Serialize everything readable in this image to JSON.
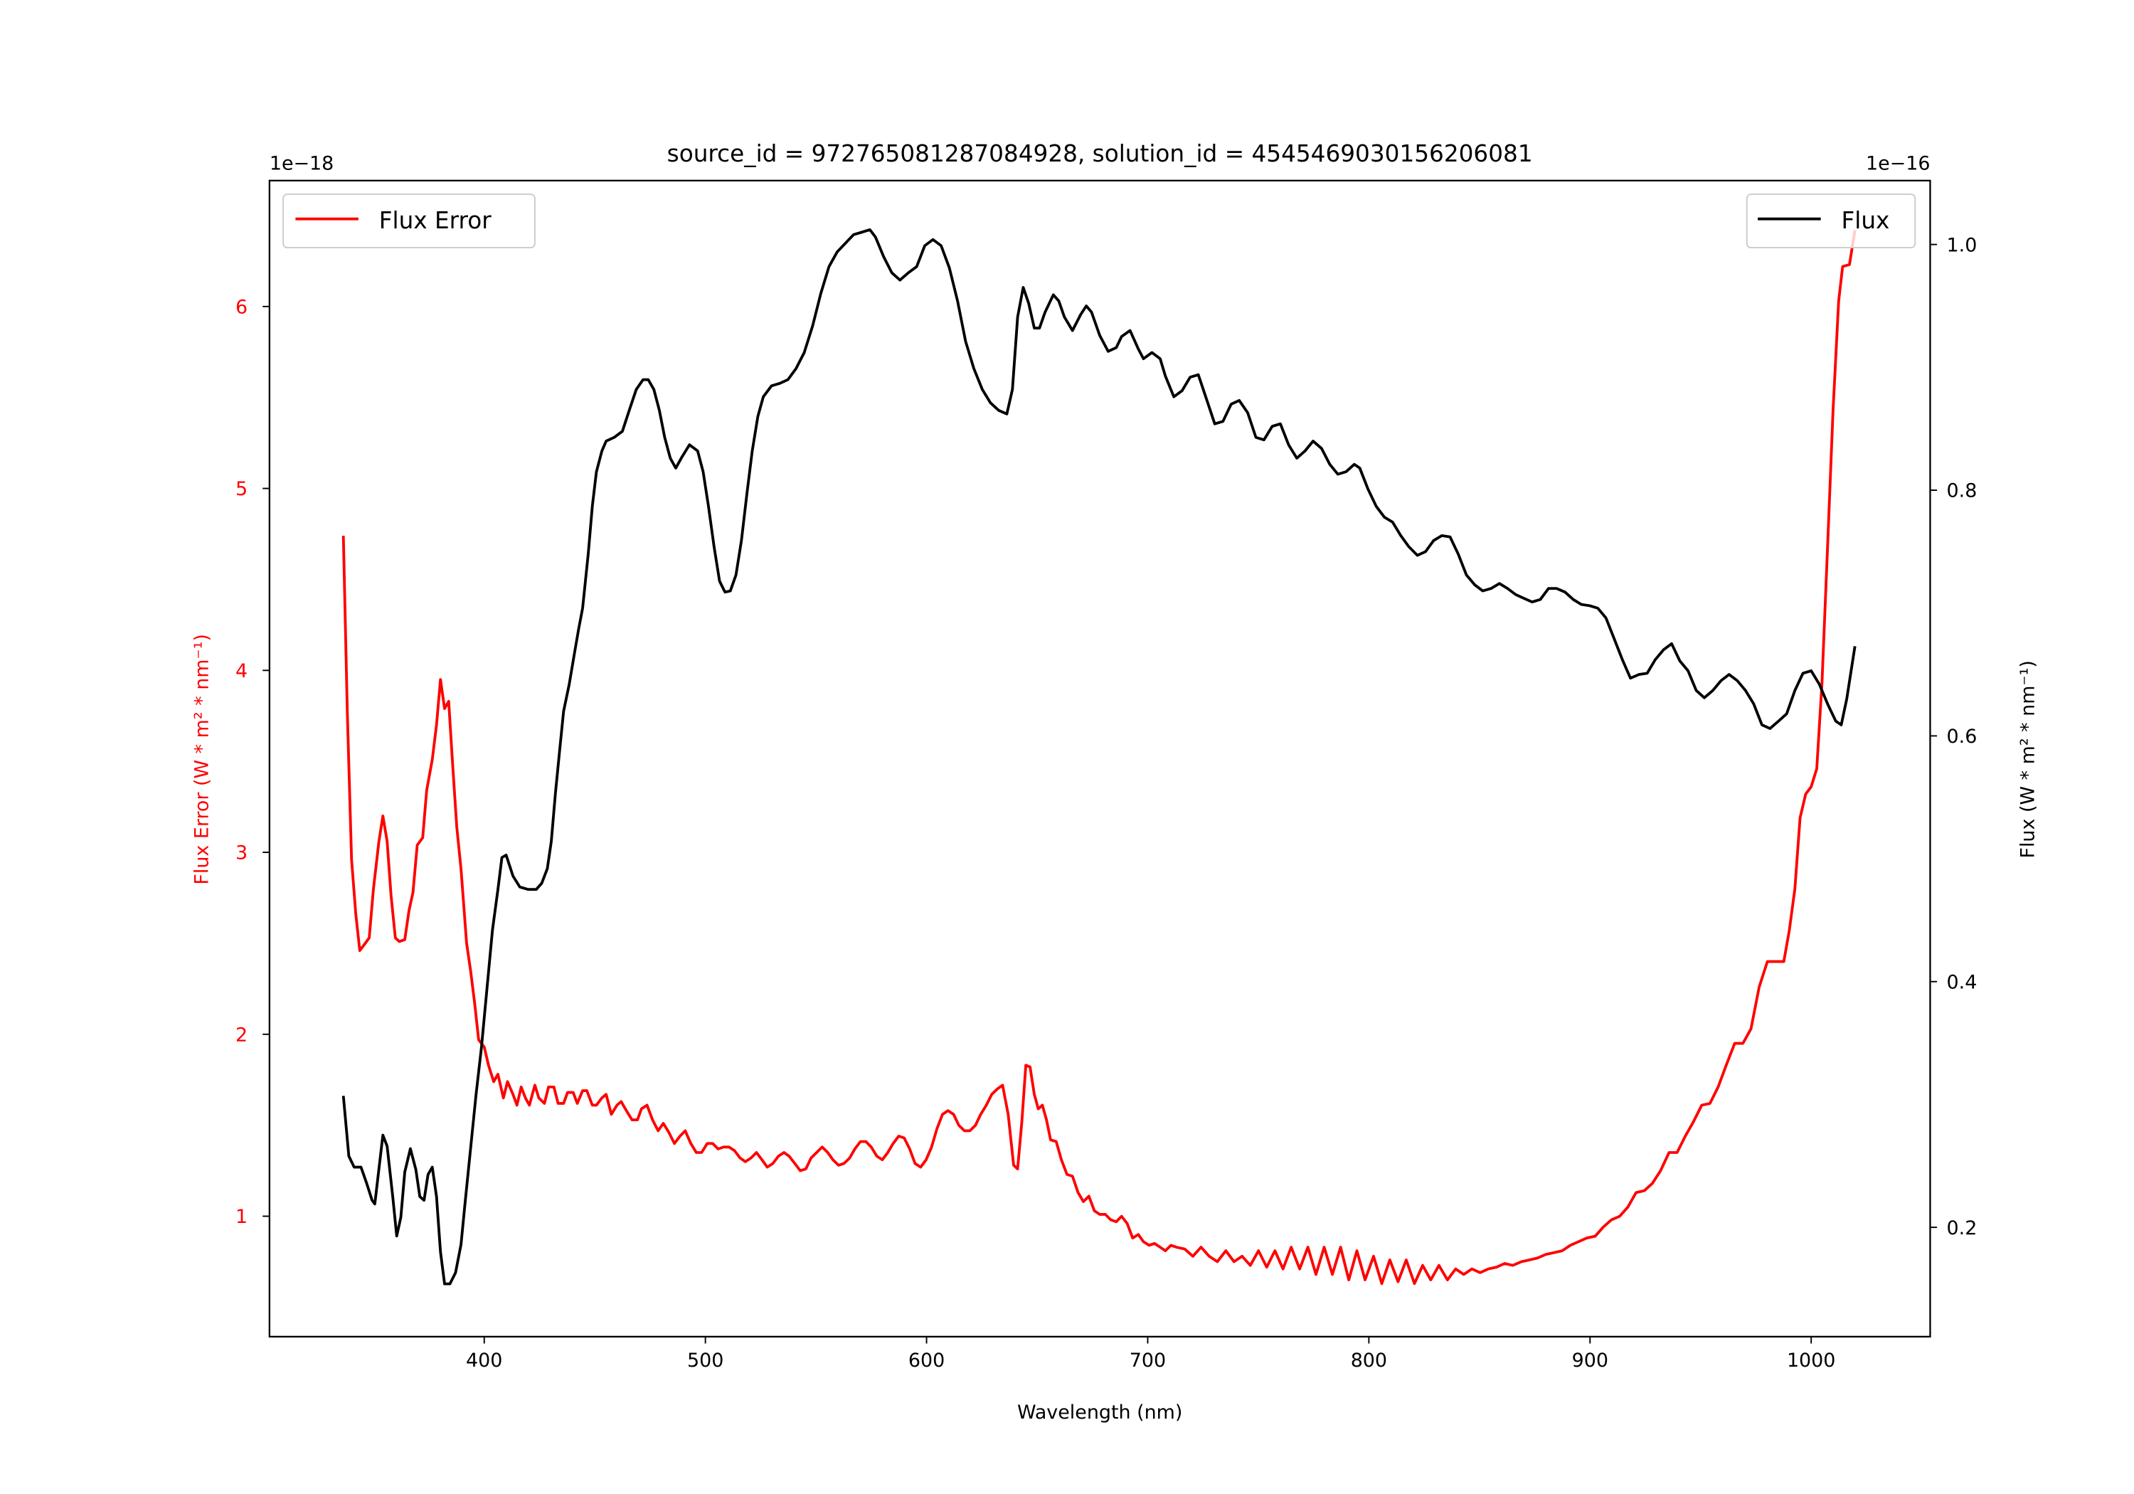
{
  "chart_data": {
    "type": "line",
    "title": "source_id = 972765081287084928, solution_id = 4545469030156206081",
    "xlabel": "Wavelength (nm)",
    "ylabel_left": "Flux Error (W * m² * nm⁻¹)",
    "ylabel_right": "Flux (W * m² * nm⁻¹)",
    "offset_left": "1e−18",
    "offset_right": "1e−16",
    "xlim": [
      302.9,
      1053.8
    ],
    "ylim_left": [
      0.338,
      6.692
    ],
    "ylim_right": [
      0.111,
      1.052
    ],
    "xticks": [
      400,
      500,
      600,
      700,
      800,
      900,
      1000
    ],
    "xtick_labels": [
      "400",
      "500",
      "600",
      "700",
      "800",
      "900",
      "1000"
    ],
    "yticks_left": [
      1,
      2,
      3,
      4,
      5,
      6
    ],
    "ytick_labels_left": [
      "1",
      "2",
      "3",
      "4",
      "5",
      "6"
    ],
    "yticks_right": [
      0.2,
      0.4,
      0.6,
      0.8,
      1.0
    ],
    "ytick_labels_right": [
      "0.2",
      "0.4",
      "0.6",
      "0.8",
      "1.0"
    ],
    "grid": false,
    "legend_left": {
      "label": "Flux Error",
      "placement": "top-left"
    },
    "legend_right": {
      "label": "Flux",
      "placement": "top-right"
    },
    "series": [
      {
        "name": "Flux Error",
        "axis": "left",
        "color": "#ff0000",
        "x": [
          336.3,
          338.1,
          340.0,
          341.9,
          343.7,
          346.2,
          348.0,
          349.9,
          352.4,
          354.2,
          356.1,
          357.9,
          359.8,
          361.6,
          364.1,
          366.0,
          367.8,
          369.7,
          372.2,
          374.0,
          376.5,
          378.4,
          380.2,
          382.1,
          383.9,
          385.8,
          387.6,
          389.5,
          392.0,
          393.8,
          395.7,
          397.5,
          400.0,
          401.9,
          404.3,
          406.2,
          408.7,
          410.5,
          413.0,
          414.8,
          416.7,
          418.6,
          420.4,
          422.9,
          424.7,
          427.2,
          429.1,
          431.5,
          433.4,
          435.9,
          437.7,
          440.2,
          442.1,
          444.5,
          446.4,
          448.9,
          450.7,
          453.2,
          455.1,
          457.5,
          460.0,
          461.9,
          464.3,
          466.8,
          469.3,
          471.1,
          473.6,
          476.1,
          478.6,
          481.0,
          483.5,
          486.0,
          488.5,
          490.9,
          493.4,
          495.9,
          498.3,
          500.8,
          503.3,
          505.8,
          508.2,
          510.7,
          513.2,
          515.7,
          518.1,
          520.6,
          523.1,
          525.6,
          528.0,
          530.5,
          533.0,
          535.5,
          537.9,
          540.4,
          542.9,
          545.4,
          547.8,
          550.3,
          552.8,
          555.3,
          557.7,
          560.2,
          562.7,
          565.2,
          567.6,
          570.1,
          572.6,
          575.0,
          577.5,
          580.0,
          582.5,
          584.9,
          587.4,
          589.9,
          592.4,
          594.8,
          597.3,
          599.8,
          602.3,
          604.7,
          607.2,
          609.7,
          612.2,
          614.6,
          617.1,
          619.6,
          622.1,
          624.5,
          627.0,
          629.5,
          632.0,
          634.4,
          636.9,
          639.4,
          641.2,
          643.1,
          644.9,
          646.8,
          648.7,
          650.5,
          652.4,
          654.2,
          656.1,
          658.6,
          661.0,
          663.5,
          666.0,
          668.5,
          670.9,
          673.4,
          675.9,
          678.3,
          680.8,
          683.3,
          685.8,
          688.2,
          690.7,
          693.2,
          695.7,
          698.1,
          700.6,
          703.1,
          705.6,
          708.0,
          710.5,
          713.0,
          716.7,
          720.4,
          724.1,
          727.8,
          731.5,
          735.3,
          739.0,
          742.7,
          746.4,
          750.1,
          753.8,
          757.5,
          761.2,
          764.9,
          768.7,
          772.4,
          776.1,
          779.8,
          783.5,
          787.2,
          790.9,
          794.6,
          798.3,
          802.1,
          805.8,
          809.5,
          813.2,
          816.9,
          820.6,
          824.3,
          828.0,
          831.7,
          835.5,
          839.2,
          842.9,
          846.6,
          850.3,
          854.0,
          857.7,
          861.4,
          865.1,
          868.9,
          872.6,
          876.3,
          880.0,
          883.7,
          887.4,
          891.1,
          894.8,
          898.5,
          902.3,
          906.0,
          909.7,
          913.4,
          917.1,
          920.8,
          924.5,
          928.2,
          931.9,
          935.7,
          939.4,
          943.1,
          946.8,
          950.5,
          954.2,
          957.9,
          961.6,
          965.4,
          969.1,
          972.8,
          976.5,
          980.2,
          983.9,
          987.6,
          990.1,
          992.6,
          995.0,
          997.5,
          1000.0,
          1002.5,
          1004.9,
          1007.4,
          1009.9,
          1012.4,
          1014.2,
          1017.3,
          1019.8
        ],
        "y": [
          4.74,
          3.77,
          2.96,
          2.66,
          2.46,
          2.5,
          2.53,
          2.8,
          3.06,
          3.2,
          3.06,
          2.76,
          2.53,
          2.51,
          2.52,
          2.68,
          2.78,
          3.04,
          3.08,
          3.34,
          3.51,
          3.7,
          3.95,
          3.79,
          3.83,
          3.47,
          3.14,
          2.91,
          2.5,
          2.35,
          2.17,
          1.97,
          1.93,
          1.83,
          1.74,
          1.78,
          1.65,
          1.74,
          1.67,
          1.61,
          1.71,
          1.65,
          1.61,
          1.72,
          1.65,
          1.62,
          1.71,
          1.71,
          1.62,
          1.62,
          1.68,
          1.68,
          1.62,
          1.69,
          1.69,
          1.61,
          1.61,
          1.65,
          1.67,
          1.56,
          1.61,
          1.63,
          1.58,
          1.53,
          1.53,
          1.59,
          1.61,
          1.53,
          1.47,
          1.51,
          1.46,
          1.4,
          1.44,
          1.47,
          1.4,
          1.35,
          1.35,
          1.4,
          1.4,
          1.37,
          1.38,
          1.38,
          1.36,
          1.32,
          1.3,
          1.32,
          1.35,
          1.31,
          1.27,
          1.29,
          1.33,
          1.35,
          1.33,
          1.29,
          1.25,
          1.26,
          1.32,
          1.35,
          1.38,
          1.35,
          1.31,
          1.28,
          1.29,
          1.32,
          1.37,
          1.41,
          1.41,
          1.38,
          1.33,
          1.31,
          1.35,
          1.4,
          1.44,
          1.43,
          1.37,
          1.29,
          1.27,
          1.31,
          1.38,
          1.48,
          1.56,
          1.58,
          1.56,
          1.5,
          1.47,
          1.47,
          1.5,
          1.56,
          1.61,
          1.67,
          1.7,
          1.72,
          1.56,
          1.28,
          1.26,
          1.52,
          1.83,
          1.82,
          1.67,
          1.59,
          1.61,
          1.53,
          1.42,
          1.41,
          1.31,
          1.23,
          1.22,
          1.13,
          1.08,
          1.11,
          1.03,
          1.01,
          1.01,
          0.98,
          0.97,
          1.0,
          0.96,
          0.88,
          0.9,
          0.86,
          0.84,
          0.85,
          0.83,
          0.81,
          0.84,
          0.83,
          0.82,
          0.78,
          0.83,
          0.78,
          0.75,
          0.81,
          0.75,
          0.78,
          0.73,
          0.81,
          0.72,
          0.81,
          0.71,
          0.83,
          0.71,
          0.83,
          0.68,
          0.83,
          0.68,
          0.83,
          0.65,
          0.81,
          0.65,
          0.78,
          0.63,
          0.76,
          0.64,
          0.76,
          0.63,
          0.73,
          0.65,
          0.73,
          0.65,
          0.71,
          0.68,
          0.71,
          0.69,
          0.71,
          0.72,
          0.74,
          0.73,
          0.75,
          0.76,
          0.77,
          0.79,
          0.8,
          0.81,
          0.84,
          0.86,
          0.88,
          0.89,
          0.94,
          0.98,
          1.0,
          1.05,
          1.13,
          1.14,
          1.18,
          1.25,
          1.35,
          1.35,
          1.44,
          1.52,
          1.61,
          1.62,
          1.71,
          1.83,
          1.95,
          1.95,
          2.03,
          2.26,
          2.4,
          2.4,
          2.4,
          2.57,
          2.8,
          3.19,
          3.32,
          3.36,
          3.46,
          3.93,
          4.68,
          5.43,
          6.03,
          6.22,
          6.23,
          6.42
        ]
      },
      {
        "name": "Flux",
        "axis": "right",
        "color": "#000000",
        "x": [
          336.3,
          338.8,
          341.2,
          344.3,
          346.8,
          349.3,
          350.5,
          354.2,
          356.1,
          358.6,
          360.4,
          362.3,
          364.1,
          366.6,
          369.1,
          370.9,
          372.8,
          374.6,
          376.5,
          378.4,
          380.2,
          382.1,
          384.5,
          387.0,
          389.5,
          391.3,
          393.8,
          396.3,
          398.8,
          403.7,
          406.2,
          408.0,
          409.9,
          413.0,
          416.1,
          419.8,
          423.5,
          426.0,
          428.5,
          430.3,
          432.2,
          434.0,
          435.9,
          438.4,
          440.8,
          442.7,
          444.5,
          447.0,
          448.9,
          450.7,
          453.2,
          455.1,
          458.8,
          462.5,
          465.6,
          468.7,
          471.8,
          474.2,
          476.7,
          479.2,
          481.6,
          484.1,
          486.6,
          489.1,
          492.8,
          496.5,
          499.0,
          501.4,
          503.9,
          506.4,
          508.9,
          511.3,
          513.8,
          516.3,
          518.8,
          521.2,
          523.7,
          526.2,
          529.9,
          533.6,
          537.3,
          541.0,
          544.7,
          548.5,
          552.2,
          555.9,
          559.6,
          563.3,
          567.0,
          570.7,
          574.4,
          576.9,
          580.6,
          584.3,
          588.0,
          591.8,
          595.5,
          599.2,
          602.9,
          606.6,
          610.3,
          614.0,
          617.7,
          621.4,
          625.2,
          628.9,
          632.6,
          636.3,
          638.8,
          641.2,
          643.7,
          646.2,
          648.7,
          651.1,
          653.6,
          657.3,
          659.8,
          662.3,
          666.0,
          669.7,
          672.2,
          674.6,
          678.3,
          682.1,
          685.8,
          688.2,
          692.0,
          695.7,
          698.1,
          701.9,
          705.6,
          708.0,
          711.8,
          715.5,
          719.2,
          722.9,
          726.6,
          730.3,
          734.0,
          737.7,
          741.4,
          745.2,
          748.9,
          752.6,
          756.3,
          760.0,
          763.7,
          767.4,
          771.1,
          774.8,
          778.6,
          782.3,
          786.0,
          789.7,
          793.4,
          795.9,
          799.6,
          803.3,
          807.0,
          810.7,
          814.4,
          818.1,
          821.9,
          825.6,
          829.3,
          833.0,
          836.7,
          840.4,
          844.1,
          847.8,
          851.5,
          855.3,
          859.0,
          862.7,
          866.4,
          870.1,
          873.8,
          877.5,
          881.2,
          884.9,
          888.7,
          892.4,
          896.1,
          899.8,
          903.5,
          907.2,
          910.9,
          914.6,
          918.3,
          922.1,
          925.8,
          929.5,
          933.2,
          936.9,
          940.6,
          944.3,
          948.0,
          951.7,
          955.5,
          959.2,
          962.9,
          966.6,
          970.3,
          974.0,
          977.7,
          981.4,
          985.2,
          988.9,
          992.6,
          996.3,
          1000.0,
          1003.7,
          1007.4,
          1011.1,
          1013.6,
          1016.1,
          1019.8
        ],
        "y": [
          0.307,
          0.258,
          0.249,
          0.249,
          0.236,
          0.222,
          0.219,
          0.275,
          0.266,
          0.225,
          0.193,
          0.208,
          0.245,
          0.264,
          0.247,
          0.225,
          0.222,
          0.243,
          0.249,
          0.225,
          0.18,
          0.154,
          0.154,
          0.163,
          0.186,
          0.219,
          0.264,
          0.308,
          0.347,
          0.442,
          0.475,
          0.501,
          0.503,
          0.486,
          0.477,
          0.475,
          0.475,
          0.48,
          0.492,
          0.514,
          0.553,
          0.587,
          0.62,
          0.642,
          0.667,
          0.687,
          0.704,
          0.748,
          0.787,
          0.815,
          0.832,
          0.84,
          0.843,
          0.848,
          0.865,
          0.882,
          0.89,
          0.89,
          0.882,
          0.865,
          0.843,
          0.826,
          0.818,
          0.826,
          0.837,
          0.832,
          0.815,
          0.787,
          0.754,
          0.726,
          0.717,
          0.718,
          0.731,
          0.759,
          0.798,
          0.832,
          0.86,
          0.876,
          0.885,
          0.887,
          0.89,
          0.899,
          0.912,
          0.934,
          0.96,
          0.982,
          0.994,
          1.001,
          1.008,
          1.01,
          1.012,
          1.006,
          0.99,
          0.977,
          0.971,
          0.977,
          0.982,
          0.999,
          1.004,
          0.999,
          0.981,
          0.954,
          0.921,
          0.899,
          0.882,
          0.871,
          0.865,
          0.862,
          0.882,
          0.941,
          0.965,
          0.952,
          0.932,
          0.932,
          0.945,
          0.959,
          0.954,
          0.941,
          0.93,
          0.943,
          0.95,
          0.945,
          0.926,
          0.913,
          0.916,
          0.925,
          0.93,
          0.915,
          0.907,
          0.912,
          0.907,
          0.893,
          0.876,
          0.881,
          0.892,
          0.894,
          0.874,
          0.854,
          0.856,
          0.87,
          0.873,
          0.863,
          0.843,
          0.841,
          0.852,
          0.854,
          0.837,
          0.826,
          0.832,
          0.84,
          0.834,
          0.821,
          0.813,
          0.815,
          0.821,
          0.818,
          0.801,
          0.787,
          0.778,
          0.774,
          0.763,
          0.754,
          0.747,
          0.75,
          0.759,
          0.763,
          0.762,
          0.748,
          0.731,
          0.723,
          0.718,
          0.72,
          0.724,
          0.72,
          0.715,
          0.712,
          0.709,
          0.711,
          0.72,
          0.72,
          0.717,
          0.711,
          0.707,
          0.706,
          0.704,
          0.696,
          0.679,
          0.662,
          0.647,
          0.65,
          0.651,
          0.662,
          0.67,
          0.675,
          0.661,
          0.653,
          0.637,
          0.631,
          0.637,
          0.645,
          0.65,
          0.645,
          0.637,
          0.626,
          0.609,
          0.606,
          0.612,
          0.618,
          0.637,
          0.651,
          0.653,
          0.642,
          0.626,
          0.612,
          0.609,
          0.63,
          0.673
        ]
      }
    ]
  }
}
